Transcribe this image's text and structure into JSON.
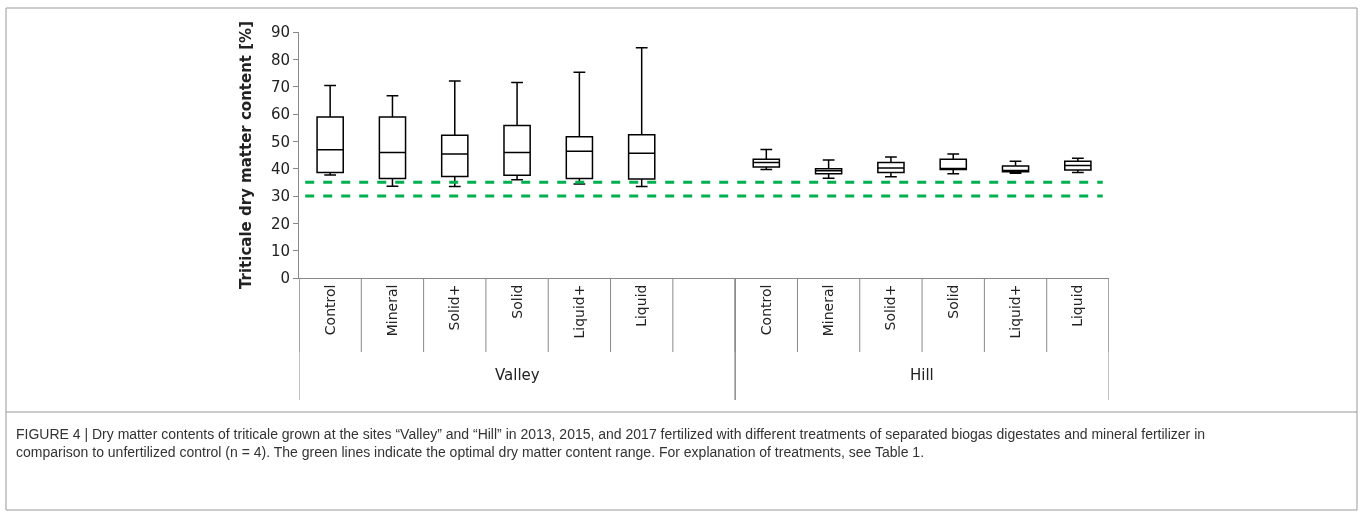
{
  "chart_data": {
    "type": "box",
    "ylabel": "Triticale dry matter content [%]",
    "categories": [
      "Control",
      "Mineral",
      "Solid+",
      "Solid",
      "Liquid+",
      "Liquid",
      null,
      "Control",
      "Mineral",
      "Solid+",
      "Solid",
      "Liquid+",
      "Liquid"
    ],
    "boxes": [
      {
        "low": 37.7,
        "q1": 38.6,
        "median": 46.9,
        "q3": 58.9,
        "high": 70.4
      },
      {
        "low": 33.6,
        "q1": 36.4,
        "median": 45.9,
        "q3": 58.9,
        "high": 66.7
      },
      {
        "low": 33.5,
        "q1": 37.1,
        "median": 45.4,
        "q3": 52.2,
        "high": 72.1
      },
      {
        "low": 35.9,
        "q1": 37.6,
        "median": 45.9,
        "q3": 55.8,
        "high": 71.5
      },
      {
        "low": 34.4,
        "q1": 36.4,
        "median": 46.4,
        "q3": 51.7,
        "high": 75.3
      },
      {
        "low": 33.5,
        "q1": 36.2,
        "median": 45.6,
        "q3": 52.4,
        "high": 84.2
      },
      null,
      {
        "low": 39.7,
        "q1": 40.6,
        "median": 42.3,
        "q3": 43.4,
        "high": 47.0
      },
      {
        "low": 36.5,
        "q1": 38.1,
        "median": 39.2,
        "q3": 40.0,
        "high": 43.2
      },
      {
        "low": 37.0,
        "q1": 38.6,
        "median": 40.2,
        "q3": 42.3,
        "high": 44.3
      },
      {
        "low": 38.1,
        "q1": 39.7,
        "median": 39.9,
        "q3": 43.4,
        "high": 45.4
      },
      {
        "low": 38.3,
        "q1": 38.9,
        "median": 39.3,
        "q3": 41.0,
        "high": 42.7
      },
      {
        "low": 38.6,
        "q1": 39.5,
        "median": 41.2,
        "q3": 42.7,
        "high": 43.8
      }
    ],
    "ylim": [
      0,
      90
    ],
    "yticks": [
      0,
      10,
      20,
      30,
      40,
      50,
      60,
      70,
      80,
      90
    ],
    "ref_lines": [
      {
        "axis": "y",
        "value": 35,
        "color": "#00b050",
        "line_style": "dashed"
      },
      {
        "axis": "y",
        "value": 30,
        "color": "#00b050",
        "line_style": "dashed"
      }
    ],
    "annotations": [
      "Valley",
      "Hill",
      "FIGURE 4 | Dry matter contents of triticale grown at the sites “Valley” and “Hill” in 2013, 2015, and 2017 fertilized with different treatments of separated biogas digestates and mineral fertilizer in comparison to unfertilized control (n = 4). The green lines indicate the optimal dry matter content range. For explanation of treatments, see Table 1."
    ]
  }
}
